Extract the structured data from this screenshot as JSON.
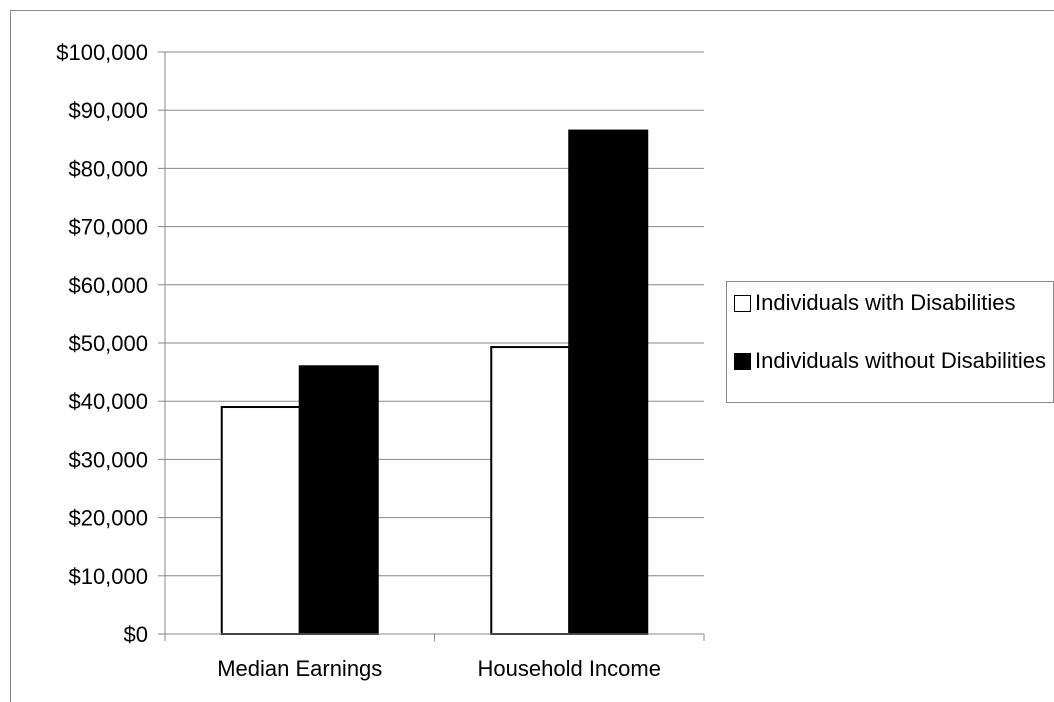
{
  "chart_data": {
    "type": "bar",
    "categories": [
      "Median Earnings",
      "Household Income"
    ],
    "series": [
      {
        "name": "Individuals with Disabilities",
        "values": [
          39000,
          49300
        ],
        "color": "#ffffff"
      },
      {
        "name": "Individuals without Disabilities",
        "values": [
          46000,
          86500
        ],
        "color": "#000000"
      }
    ],
    "yticks": [
      "$0",
      "$10,000",
      "$20,000",
      "$30,000",
      "$40,000",
      "$50,000",
      "$60,000",
      "$70,000",
      "$80,000",
      "$90,000",
      "$100,000"
    ],
    "ylim": [
      0,
      100000
    ],
    "grid": true,
    "legend_position": "right",
    "title": "",
    "xlabel": "",
    "ylabel": ""
  }
}
